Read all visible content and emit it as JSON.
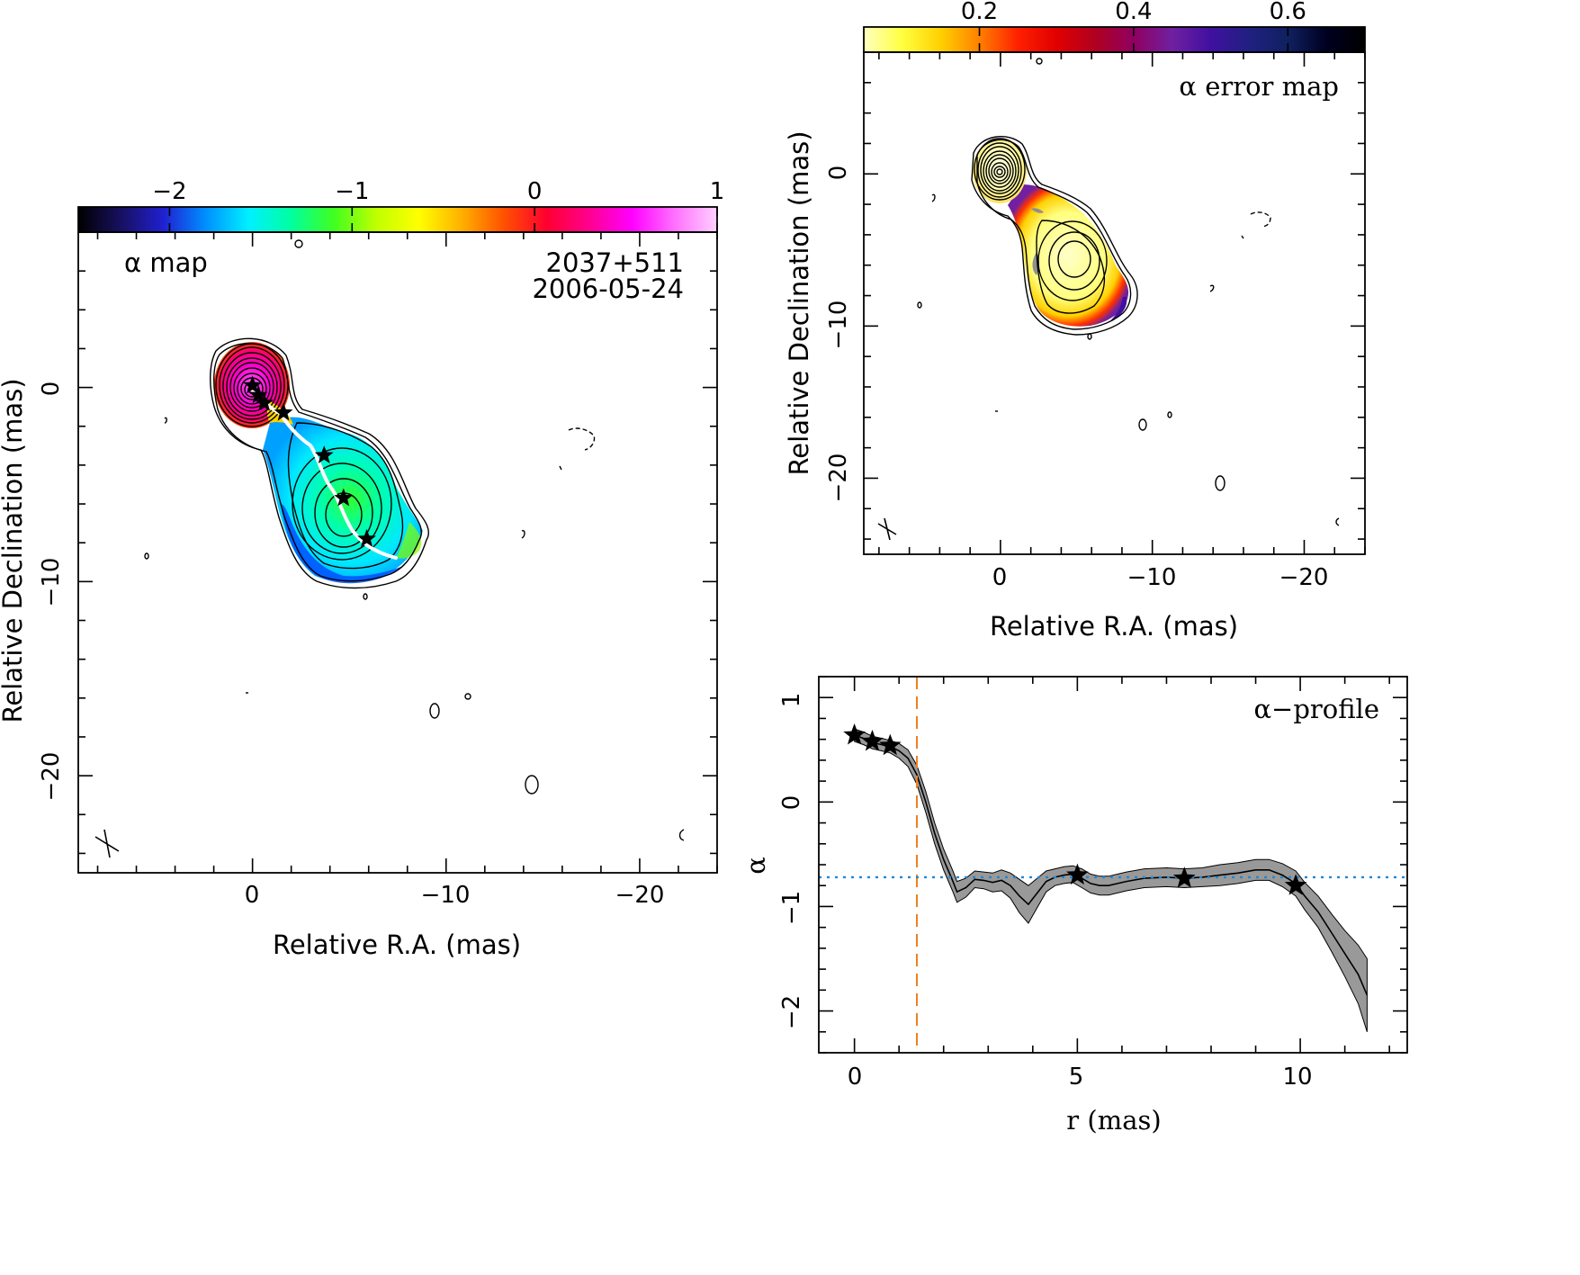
{
  "chart_data": [
    {
      "type": "heatmap",
      "panel": "alpha_map",
      "title": "α map",
      "source": "2037+511",
      "date": "2006-05-24",
      "xlabel": "Relative R.A. (mas)",
      "ylabel": "Relative Declination (mas)",
      "x_ticks": [
        "0",
        "−10",
        "−20"
      ],
      "y_ticks": [
        "0",
        "−10",
        "−20"
      ],
      "xlim": [
        9,
        -24
      ],
      "ylim": [
        -25,
        8
      ],
      "colorbar": {
        "ticks": [
          "−2",
          "−1",
          "0",
          "1"
        ],
        "range": [
          -2.5,
          1.0
        ],
        "stops": [
          "#000000",
          "#181060",
          "#2020d0",
          "#0090ff",
          "#00f0ff",
          "#00ffa0",
          "#40ff20",
          "#c0ff00",
          "#ffff00",
          "#ffb000",
          "#ff5000",
          "#ff0030",
          "#ff0090",
          "#ff00ff",
          "#ff70ff",
          "#ffd0ff"
        ]
      },
      "ridge_stars": [
        {
          "x": 0.0,
          "y": 0.1
        },
        {
          "x": -0.3,
          "y": -0.4
        },
        {
          "x": -0.6,
          "y": -0.8
        },
        {
          "x": -1.6,
          "y": -1.3
        },
        {
          "x": -3.7,
          "y": -3.5
        },
        {
          "x": -4.7,
          "y": -5.7
        },
        {
          "x": -5.9,
          "y": -7.8
        }
      ]
    },
    {
      "type": "heatmap",
      "panel": "alpha_error_map",
      "title": "α error map",
      "xlabel": "Relative R.A. (mas)",
      "ylabel": "Relative Declination (mas)",
      "x_ticks": [
        "0",
        "−10",
        "−20"
      ],
      "y_ticks": [
        "0",
        "−10",
        "−20"
      ],
      "xlim": [
        9,
        -24
      ],
      "ylim": [
        -25,
        8
      ],
      "colorbar": {
        "ticks": [
          "0.2",
          "0.4",
          "0.6"
        ],
        "range": [
          0.05,
          0.7
        ],
        "stops": [
          "#ffffc0",
          "#ffff40",
          "#ffd000",
          "#ff8000",
          "#ff2000",
          "#e00000",
          "#b00020",
          "#900060",
          "#7020a0",
          "#4010a0",
          "#202080",
          "#102060",
          "#000020",
          "#000000"
        ]
      }
    },
    {
      "type": "line",
      "panel": "alpha_profile",
      "title": "α−profile",
      "xlabel": "r (mas)",
      "ylabel": "α",
      "x_ticks": [
        "0",
        "5",
        "10"
      ],
      "y_ticks": [
        "1",
        "0",
        "−1",
        "−2"
      ],
      "xlim": [
        -0.8,
        12.4
      ],
      "ylim": [
        -2.4,
        1.2
      ],
      "reference_lines": {
        "vertical_x": 1.4,
        "horizontal_y": -0.72
      },
      "series": [
        {
          "x": [
            0.0,
            0.2,
            0.4,
            0.6,
            0.8,
            1.0,
            1.2,
            1.4,
            1.6,
            1.8,
            2.0,
            2.2,
            2.3,
            2.5,
            2.7,
            2.9,
            3.1,
            3.3,
            3.5,
            3.7,
            3.9,
            4.1,
            4.3,
            4.5,
            4.7,
            4.9,
            5.1,
            5.3,
            5.5,
            5.7,
            5.9,
            6.1,
            6.5,
            7.0,
            7.4,
            7.8,
            8.2,
            8.6,
            9.0,
            9.3,
            9.6,
            9.9,
            10.1,
            10.4,
            10.7,
            11.0,
            11.3,
            11.5
          ],
          "values": [
            0.64,
            0.61,
            0.57,
            0.55,
            0.53,
            0.49,
            0.42,
            0.26,
            0.0,
            -0.3,
            -0.55,
            -0.75,
            -0.86,
            -0.82,
            -0.74,
            -0.75,
            -0.77,
            -0.75,
            -0.8,
            -0.9,
            -0.98,
            -0.87,
            -0.76,
            -0.72,
            -0.7,
            -0.69,
            -0.73,
            -0.78,
            -0.8,
            -0.8,
            -0.78,
            -0.76,
            -0.73,
            -0.72,
            -0.73,
            -0.72,
            -0.7,
            -0.68,
            -0.65,
            -0.65,
            -0.7,
            -0.78,
            -0.9,
            -1.05,
            -1.25,
            -1.45,
            -1.65,
            -1.85
          ],
          "error": [
            0.06,
            0.06,
            0.06,
            0.06,
            0.06,
            0.07,
            0.08,
            0.09,
            0.1,
            0.1,
            0.1,
            0.1,
            0.1,
            0.09,
            0.08,
            0.08,
            0.09,
            0.1,
            0.12,
            0.16,
            0.18,
            0.14,
            0.1,
            0.08,
            0.08,
            0.08,
            0.09,
            0.09,
            0.09,
            0.09,
            0.09,
            0.09,
            0.09,
            0.09,
            0.09,
            0.09,
            0.1,
            0.1,
            0.1,
            0.1,
            0.11,
            0.12,
            0.13,
            0.15,
            0.18,
            0.22,
            0.28,
            0.35
          ]
        }
      ],
      "stars": [
        {
          "x": 0.0,
          "y": 0.64
        },
        {
          "x": 0.4,
          "y": 0.58
        },
        {
          "x": 0.8,
          "y": 0.54
        },
        {
          "x": 5.0,
          "y": -0.7
        },
        {
          "x": 7.4,
          "y": -0.73
        },
        {
          "x": 9.9,
          "y": -0.8
        }
      ]
    }
  ]
}
